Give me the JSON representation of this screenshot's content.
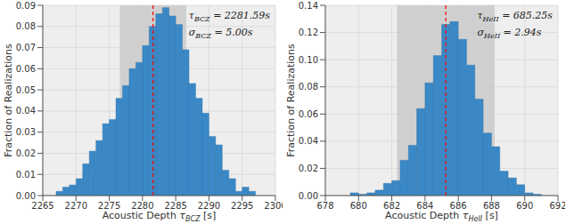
{
  "chart_data": [
    {
      "type": "histogram",
      "ylabel": "Fraction of Realizations",
      "xlabel": {
        "text": "Acoustic Depth ",
        "math": "τ",
        "sub": "BCZ",
        "after": " [s]"
      },
      "bins": [
        2267,
        2268,
        2269,
        2270,
        2271,
        2272,
        2273,
        2274,
        2275,
        2276,
        2277,
        2278,
        2279,
        2280,
        2281,
        2282,
        2283,
        2284,
        2285,
        2286,
        2287,
        2288,
        2289,
        2290,
        2291,
        2292,
        2293,
        2294,
        2295,
        2296,
        2297
      ],
      "values": [
        0.002,
        0.004,
        0.005,
        0.008,
        0.015,
        0.021,
        0.026,
        0.034,
        0.036,
        0.046,
        0.052,
        0.06,
        0.063,
        0.071,
        0.08,
        0.086,
        0.089,
        0.085,
        0.081,
        0.069,
        0.053,
        0.046,
        0.039,
        0.028,
        0.024,
        0.012,
        0.008,
        0.002,
        0.004,
        0.002
      ],
      "color": "#3a88c5",
      "xlim": [
        2265,
        2300
      ],
      "xticks": [
        2265,
        2270,
        2275,
        2280,
        2285,
        2290,
        2295,
        2300
      ],
      "ylim": [
        0,
        0.09
      ],
      "yticks": [
        {
          "value": 0,
          "label": "0.00"
        },
        {
          "value": 0.01,
          "label": "0.01"
        },
        {
          "value": 0.02,
          "label": "0.02"
        },
        {
          "value": 0.03,
          "label": "0.03"
        },
        {
          "value": 0.04,
          "label": "0.04"
        },
        {
          "value": 0.05,
          "label": "0.05"
        },
        {
          "value": 0.06,
          "label": "0.06"
        },
        {
          "value": 0.07,
          "label": "0.07"
        },
        {
          "value": 0.08,
          "label": "0.08"
        },
        {
          "value": 0.09,
          "label": "0.09"
        }
      ],
      "grid": true,
      "mean": 2281.59,
      "sigma": 5.0,
      "annotations": [
        {
          "math": "τ",
          "sub": "BCZ",
          "text": " = 2281.59s"
        },
        {
          "math": "σ",
          "sub": "BCZ",
          "text": " = 5.00s"
        }
      ]
    },
    {
      "type": "histogram",
      "ylabel": "Fraction of Realizations",
      "xlabel": {
        "text": "Acoustic Depth ",
        "math": "τ",
        "sub": "HeII",
        "after": " [s]"
      },
      "bins": [
        679.5,
        680,
        680.5,
        681,
        681.5,
        682,
        682.5,
        683,
        683.5,
        684,
        684.5,
        685,
        685.5,
        686,
        686.5,
        687,
        687.5,
        688,
        688.5,
        689,
        689.5,
        690,
        690.5,
        691
      ],
      "values": [
        0.002,
        0.001,
        0.002,
        0.004,
        0.009,
        0.011,
        0.026,
        0.037,
        0.064,
        0.083,
        0.103,
        0.126,
        0.128,
        0.115,
        0.096,
        0.071,
        0.046,
        0.036,
        0.018,
        0.013,
        0.008,
        0.002,
        0.001
      ],
      "color": "#3a88c5",
      "xlim": [
        678,
        692
      ],
      "xticks": [
        678,
        680,
        682,
        684,
        686,
        688,
        690,
        692
      ],
      "ylim": [
        0,
        0.14
      ],
      "yticks": [
        {
          "value": 0,
          "label": "0.00"
        },
        {
          "value": 0.02,
          "label": "0.02"
        },
        {
          "value": 0.04,
          "label": "0.04"
        },
        {
          "value": 0.06,
          "label": "0.06"
        },
        {
          "value": 0.08,
          "label": "0.08"
        },
        {
          "value": 0.1,
          "label": "0.10"
        },
        {
          "value": 0.12,
          "label": "0.12"
        },
        {
          "value": 0.14,
          "label": "0.14"
        }
      ],
      "grid": true,
      "mean": 685.25,
      "sigma": 2.94,
      "annotations": [
        {
          "math": "τ",
          "sub": "HeII",
          "text": " = 685.25s"
        },
        {
          "math": "σ",
          "sub": "HeII",
          "text": " = 2.94s"
        }
      ]
    }
  ]
}
